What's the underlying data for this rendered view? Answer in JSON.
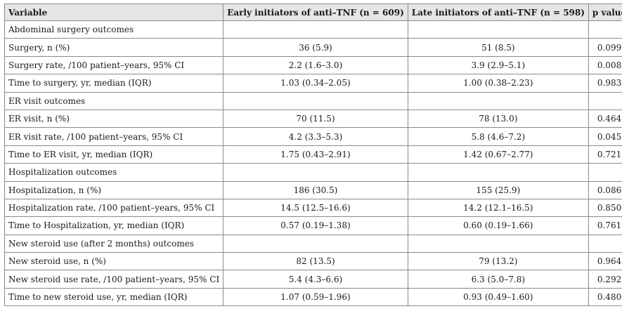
{
  "headers": {
    "variable": "Variable",
    "early": "Early initiators of anti–TNF (n = 609)",
    "late": "Late initiators of anti–TNF (n = 598)",
    "p": "p value"
  },
  "rows": [
    {
      "label": "Abdominal surgery outcomes",
      "early": "",
      "late": "",
      "p": ""
    },
    {
      "label": "Surgery, n (%)",
      "early": "36 (5.9)",
      "late": "51 (8.5)",
      "p": "0.099"
    },
    {
      "label": "Surgery rate, /100 patient–years, 95% CI",
      "early": "2.2 (1.6–3.0)",
      "late": "3.9 (2.9–5.1)",
      "p": "0.008"
    },
    {
      "label": "Time to surgery, yr, median (IQR)",
      "early": "1.03 (0.34–2.05)",
      "late": "1.00 (0.38–2.23)",
      "p": "0.983"
    },
    {
      "label": "ER visit outcomes",
      "early": "",
      "late": "",
      "p": ""
    },
    {
      "label": "ER visit, n (%)",
      "early": "70 (11.5)",
      "late": "78 (13.0)",
      "p": "0.464"
    },
    {
      "label": "ER visit rate, /100 patient–years, 95% CI",
      "early": "4.2 (3.3–5.3)",
      "late": "5.8 (4.6–7.2)",
      "p": "0.045"
    },
    {
      "label": "Time to ER visit, yr, median (IQR)",
      "early": "1.75 (0.43–2.91)",
      "late": "1.42 (0.67–2.77)",
      "p": "0.721"
    },
    {
      "label": "Hospitalization outcomes",
      "early": "",
      "late": "",
      "p": ""
    },
    {
      "label": "Hospitalization, n (%)",
      "early": "186 (30.5)",
      "late": "155 (25.9)",
      "p": "0.086"
    },
    {
      "label": "Hospitalization rate, /100 patient–years, 95% CI",
      "early": "14.5 (12.5–16.6)",
      "late": "14.2 (12.1–16.5)",
      "p": "0.850"
    },
    {
      "label": "Time to Hospitalization, yr, median (IQR)",
      "early": "0.57 (0.19–1.38)",
      "late": "0.60 (0.19–1.66)",
      "p": "0.761"
    },
    {
      "label": "New steroid use (after 2 months) outcomes",
      "early": "",
      "late": "",
      "p": ""
    },
    {
      "label": "New steroid use, n (%)",
      "early": "82 (13.5)",
      "late": "79 (13.2)",
      "p": "0.964"
    },
    {
      "label": "New steroid use rate, /100 patient–years, 95% CI",
      "early": "5.4 (4.3–6.6)",
      "late": "6.3 (5.0–7.8)",
      "p": "0.292"
    },
    {
      "label": "Time to new steroid use, yr, median (IQR)",
      "early": "1.07 (0.59–1.96)",
      "late": "0.93 (0.49–1.60)",
      "p": "0.480"
    }
  ]
}
